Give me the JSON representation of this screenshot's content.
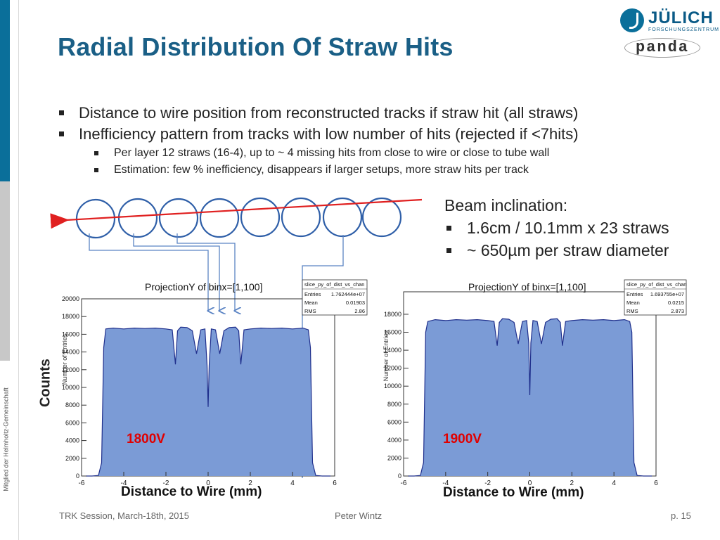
{
  "slide": {
    "title": "Radial Distribution Of Straw Hits",
    "side_text": "Mitglied der Helmholtz-Gemeinschaft",
    "logos": {
      "julich": "JÜLICH",
      "julich_sub": "FORSCHUNGSZENTRUM",
      "panda": "panda"
    },
    "bullets": [
      {
        "level": 1,
        "text": "Distance to wire position from reconstructed tracks if straw hit (all straws)"
      },
      {
        "level": 1,
        "text": "Inefficiency pattern from tracks with low number of hits (rejected if <7hits)"
      },
      {
        "level": 2,
        "text": "Per layer 12 straws (16-4), up to ~ 4 missing hits from close to wire or close to tube wall"
      },
      {
        "level": 2,
        "text": "Estimation: few % inefficiency, disappears if larger setups, more straw hits per track"
      }
    ],
    "beam": {
      "heading": "Beam inclination:",
      "items": [
        "1.6cm / 10.1mm x 23 straws",
        "~ 650µm per straw diameter"
      ]
    },
    "y_axis_label": "Counts",
    "footer": {
      "session": "TRK Session, March-18th, 2015",
      "author": "Peter Wintz",
      "page": "p. 15"
    }
  },
  "colors": {
    "title": "#1a5f86",
    "fill": "#7b9bd6",
    "line": "#1f2f8c",
    "voltage": "#e00000",
    "beam_line": "#e02020",
    "arrows": "#5b84c4"
  },
  "chart_data": [
    {
      "type": "area",
      "title": "ProjectionY of binx=[1,100]",
      "stats": {
        "name": "slice_py_of_dist_vs_chan",
        "Entries": "1.762444e+07",
        "Mean": "0.01903",
        "RMS": "2.86"
      },
      "xlabel": "Distance to Wire (mm)",
      "ylabel": "Number of Entries",
      "xlim": [
        -6,
        6
      ],
      "ylim": [
        0,
        20000
      ],
      "xticks": [
        "-6",
        "-4",
        "-2",
        "0",
        "2",
        "4",
        "6"
      ],
      "yticks": [
        "0",
        "2000",
        "4000",
        "6000",
        "8000",
        "10000",
        "12000",
        "14000",
        "16000",
        "18000",
        "20000"
      ],
      "annotation": "1800V",
      "x": [
        -5.8,
        -5.5,
        -5.2,
        -5.05,
        -4.95,
        -4.85,
        -4.5,
        -4.0,
        -3.5,
        -3.0,
        -2.5,
        -2.0,
        -1.7,
        -1.55,
        -1.45,
        -1.3,
        -1.0,
        -0.75,
        -0.55,
        -0.35,
        -0.15,
        -0.05,
        0.0,
        0.05,
        0.15,
        0.35,
        0.55,
        0.75,
        1.0,
        1.3,
        1.45,
        1.55,
        1.7,
        2.0,
        2.5,
        3.0,
        3.5,
        4.0,
        4.5,
        4.75,
        4.85,
        4.95,
        5.1,
        5.4,
        5.8
      ],
      "y": [
        0,
        0,
        60,
        1500,
        14500,
        16600,
        16700,
        16600,
        16700,
        16650,
        16700,
        16600,
        16500,
        12600,
        16400,
        16800,
        16750,
        16400,
        13800,
        16500,
        16600,
        12500,
        7800,
        12500,
        16600,
        16500,
        13800,
        16400,
        16750,
        16800,
        16400,
        12600,
        16500,
        16600,
        16700,
        16650,
        16700,
        16600,
        16700,
        16500,
        14500,
        1500,
        60,
        0,
        0
      ]
    },
    {
      "type": "area",
      "title": "ProjectionY of binx=[1,100]",
      "stats": {
        "name": "slice_py_of_dist_vs_chan",
        "Entries": "1.693755e+07",
        "Mean": "0.0215",
        "RMS": "2.873"
      },
      "xlabel": "Distance to Wire (mm)",
      "ylabel": "Number of Entries",
      "xlim": [
        -6,
        6
      ],
      "ylim": [
        0,
        20500
      ],
      "xticks": [
        "-6",
        "-4",
        "-2",
        "0",
        "2",
        "4",
        "6"
      ],
      "yticks": [
        "0",
        "2000",
        "4000",
        "6000",
        "8000",
        "10000",
        "12000",
        "14000",
        "16000",
        "18000"
      ],
      "annotation": "1900V",
      "x": [
        -5.8,
        -5.5,
        -5.2,
        -5.05,
        -4.95,
        -4.85,
        -4.5,
        -4.0,
        -3.5,
        -3.0,
        -2.5,
        -2.0,
        -1.7,
        -1.55,
        -1.45,
        -1.3,
        -1.0,
        -0.75,
        -0.55,
        -0.35,
        -0.15,
        -0.05,
        0.0,
        0.05,
        0.15,
        0.35,
        0.55,
        0.75,
        1.0,
        1.3,
        1.45,
        1.55,
        1.7,
        2.0,
        2.5,
        3.0,
        3.5,
        4.0,
        4.5,
        4.75,
        4.85,
        4.95,
        5.1,
        5.4,
        5.8
      ],
      "y": [
        0,
        0,
        60,
        1500,
        16000,
        17200,
        17400,
        17300,
        17400,
        17350,
        17400,
        17300,
        17200,
        14500,
        17100,
        17500,
        17450,
        17100,
        14700,
        17200,
        17300,
        14800,
        9000,
        14800,
        17300,
        17200,
        14700,
        17100,
        17450,
        17500,
        17100,
        14500,
        17200,
        17300,
        17400,
        17350,
        17400,
        17300,
        17400,
        17200,
        16000,
        1500,
        60,
        0,
        0
      ]
    }
  ]
}
